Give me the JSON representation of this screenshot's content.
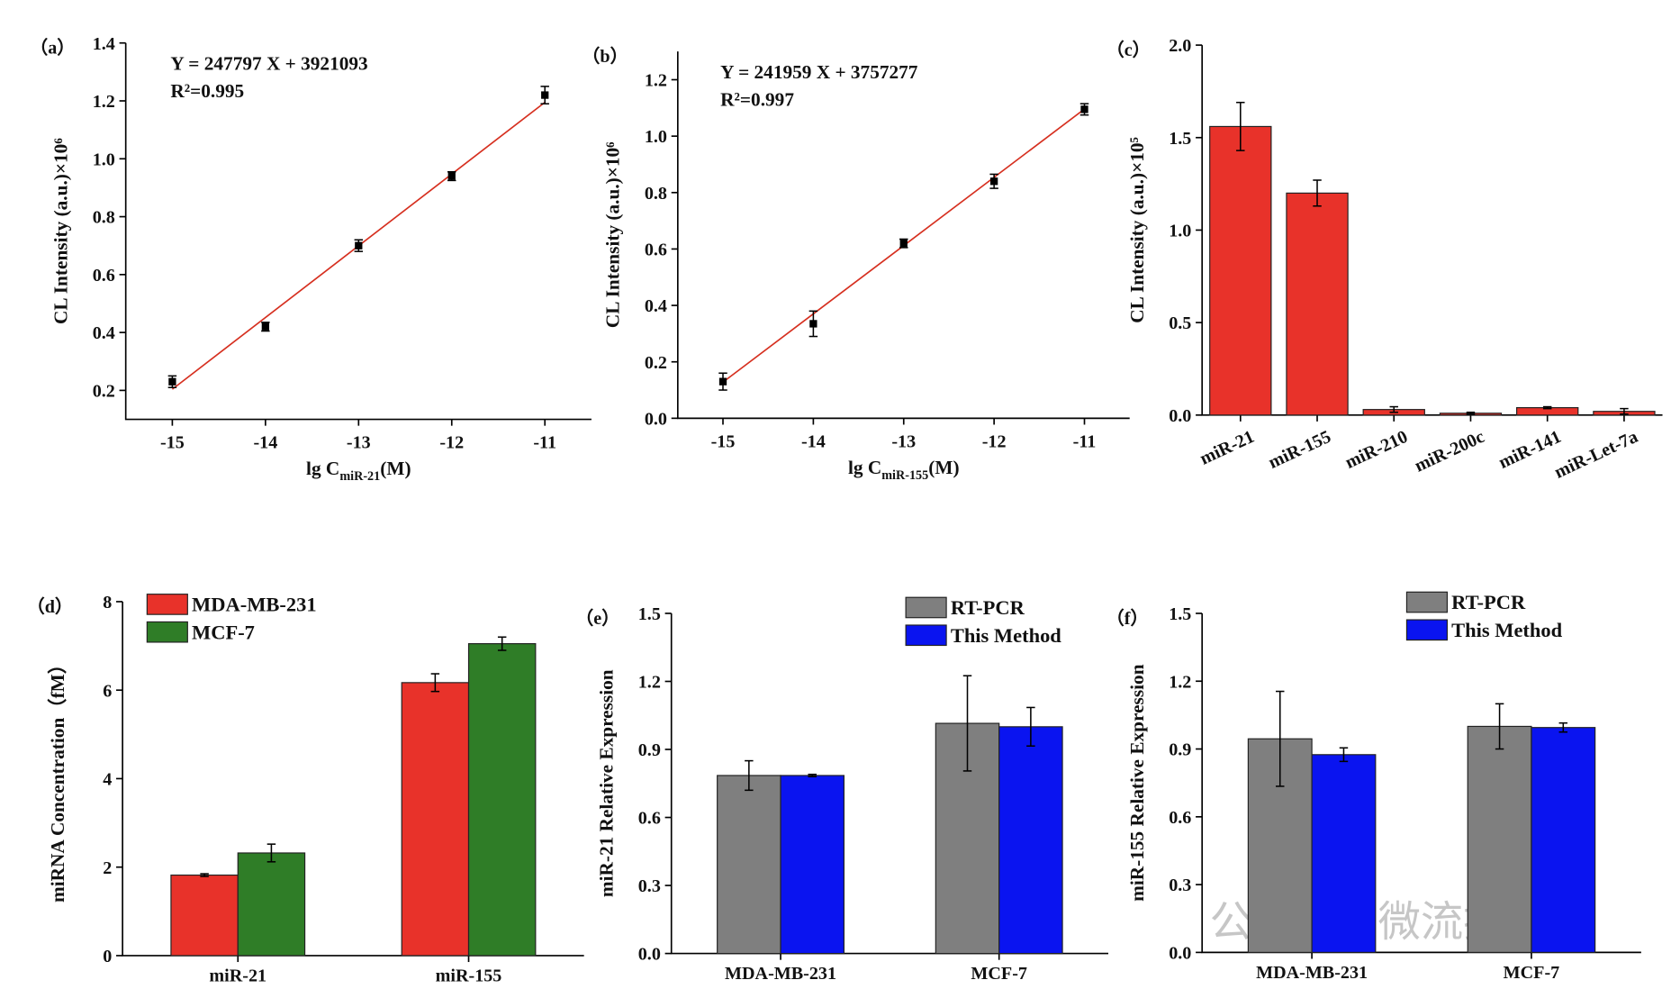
{
  "chart_data": [
    {
      "panel": "（a）",
      "type": "scatter",
      "y_label": "CL Intensity (a.u.)×10⁶",
      "x_label": {
        "text": "lg C",
        "sub": "miR-21",
        "after": "(M)"
      },
      "equation": "Y = 247797 X + 3921093",
      "r2": "R²=0.995",
      "x": [
        -15,
        -14,
        -13,
        -12,
        -11
      ],
      "series": [
        {
          "color": "#000000",
          "values": [
            0.23,
            0.42,
            0.7,
            0.94,
            1.22
          ],
          "errors": [
            0.02,
            0.015,
            0.02,
            0.015,
            0.03
          ]
        }
      ],
      "fit": {
        "color": "#d62f1f",
        "x": [
          -15,
          -11
        ],
        "y": [
          0.204,
          1.195
        ]
      },
      "xlim": [
        -15.5,
        -10.5
      ],
      "xticks": [
        -15,
        -14,
        -13,
        -12,
        -11
      ],
      "ylim": [
        0.1,
        1.4
      ],
      "yticks": [
        0.2,
        0.4,
        0.6,
        0.8,
        {
          "value": 1.0,
          "label": "1.0"
        },
        1.2,
        1.4
      ]
    },
    {
      "panel": "（b）",
      "type": "scatter",
      "y_label": "CL Intensity (a.u.)×10⁶",
      "x_label": {
        "text": "lg C",
        "sub": "miR-155",
        "after": "(M)"
      },
      "equation": "Y = 241959 X + 3757277",
      "r2": "R²=0.997",
      "x": [
        -15,
        -14,
        -13,
        -12,
        -11
      ],
      "series": [
        {
          "color": "#000000",
          "values": [
            0.13,
            0.335,
            0.62,
            0.84,
            1.095
          ],
          "errors": [
            0.03,
            0.045,
            0.015,
            0.025,
            0.02
          ]
        }
      ],
      "fit": {
        "color": "#d62f1f",
        "x": [
          -15,
          -11
        ],
        "y": [
          0.128,
          1.096
        ]
      },
      "xlim": [
        -15.5,
        -10.5
      ],
      "xticks": [
        -15,
        -14,
        -13,
        -12,
        -11
      ],
      "ylim": [
        0,
        1.3
      ],
      "yticks": [
        {
          "value": 0,
          "label": "0.0"
        },
        0.2,
        0.4,
        0.6,
        0.8,
        {
          "value": 1.0,
          "label": "1.0"
        },
        1.2
      ]
    },
    {
      "panel": "（c）",
      "type": "bar",
      "y_label": "CL Intensity (a.u.)×10⁵",
      "categories": [
        "miR-21",
        "miR-155",
        "miR-210",
        "miR-200c",
        "miR-141",
        "miR-Let-7a"
      ],
      "series": [
        {
          "color": "#e8322a",
          "values": [
            1.56,
            1.2,
            0.03,
            0.01,
            0.04,
            0.02
          ],
          "errors": [
            0.13,
            0.07,
            0.015,
            0.005,
            0.005,
            0.015
          ]
        }
      ],
      "ylim": [
        0,
        2.0
      ],
      "yticks": [
        {
          "value": 0,
          "label": "0.0"
        },
        0.5,
        {
          "value": 1,
          "label": "1.0"
        },
        1.5,
        {
          "value": 2,
          "label": "2.0"
        }
      ]
    },
    {
      "panel": "（d）",
      "type": "bar",
      "y_label": "miRNA Concentration（fM）",
      "legend": "upper left",
      "categories": [
        "miR-21",
        "miR-155"
      ],
      "series": [
        {
          "name": "MDA-MB-231",
          "color": "#e8322a",
          "values": [
            1.82,
            6.17
          ],
          "errors": [
            0.03,
            0.2
          ]
        },
        {
          "name": "MCF-7",
          "color": "#2f7d27",
          "values": [
            2.32,
            7.05
          ],
          "errors": [
            0.2,
            0.15
          ]
        }
      ],
      "ylim": [
        0,
        8
      ],
      "yticks": [
        0,
        2,
        4,
        6,
        8
      ]
    },
    {
      "panel": "（e）",
      "type": "bar",
      "y_label": "miR-21 Relative Expression",
      "legend": "upper right",
      "categories": [
        "MDA-MB-231",
        "MCF-7"
      ],
      "series": [
        {
          "name": "RT-PCR",
          "color": "#7f7f7f",
          "values": [
            0.785,
            1.015
          ],
          "errors": [
            0.065,
            0.21
          ]
        },
        {
          "name": "This Method",
          "color": "#0a14f0",
          "values": [
            0.785,
            1.0
          ],
          "errors": [
            0.005,
            0.085
          ]
        }
      ],
      "ylim": [
        0,
        1.5
      ],
      "yticks": [
        {
          "value": 0,
          "label": "0.0"
        },
        0.3,
        0.6,
        0.9,
        1.2,
        1.5
      ]
    },
    {
      "panel": "（f）",
      "type": "bar",
      "y_label": "miR-155 Relative Expression",
      "legend": "upper right",
      "categories": [
        "MDA-MB-231",
        "MCF-7"
      ],
      "series": [
        {
          "name": "RT-PCR",
          "color": "#7f7f7f",
          "values": [
            0.945,
            1.0
          ],
          "errors": [
            0.21,
            0.1
          ]
        },
        {
          "name": "This Method",
          "color": "#0a14f0",
          "values": [
            0.875,
            0.995
          ],
          "errors": [
            0.03,
            0.02
          ]
        }
      ],
      "ylim": [
        0,
        1.5
      ],
      "yticks": [
        {
          "value": 0,
          "label": "0.0"
        },
        0.3,
        0.6,
        0.9,
        1.2,
        1.5
      ]
    }
  ],
  "watermark": "公众号 · 微流控"
}
